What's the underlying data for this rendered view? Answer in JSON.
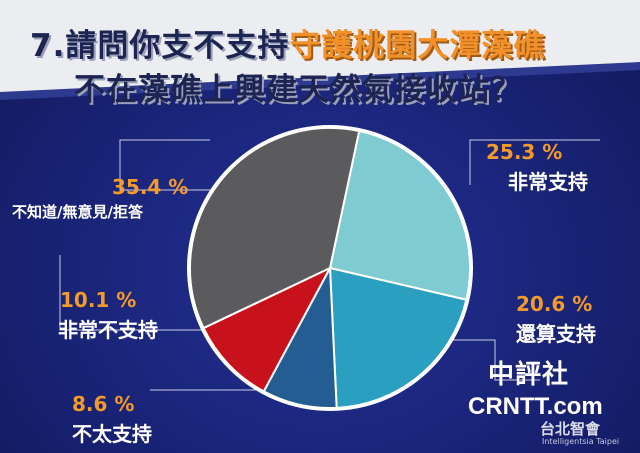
{
  "title": {
    "prefix": "7.請問你支不支持",
    "highlight": "守護桃園大潭藻礁",
    "line2": "不在藻礁上興建天然氣接收站？"
  },
  "chart_data": {
    "type": "pie",
    "slices": [
      {
        "label": "非常支持",
        "value": 25.3,
        "display": "25.3 %",
        "color": "#7ecbd1"
      },
      {
        "label": "還算支持",
        "value": 20.6,
        "display": "20.6 %",
        "color": "#2a9fbf"
      },
      {
        "label": "不太支持",
        "value": 8.6,
        "display": "8.6 %",
        "color": "#245d91"
      },
      {
        "label": "非常不支持",
        "value": 10.1,
        "display": "10.1 %",
        "color": "#c7111b"
      },
      {
        "label": "不知道/無意見/拒答",
        "value": 35.4,
        "display": "35.4 %",
        "color": "#5b5a5c"
      }
    ]
  },
  "watermark": {
    "cn": "中評社",
    "site": "CRNTT.com",
    "brand": "台北智會",
    "brand_en": "Intelligentsia Taipei"
  }
}
